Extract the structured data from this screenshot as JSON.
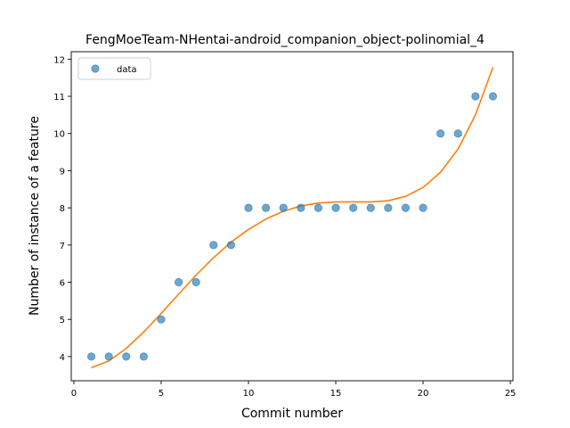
{
  "chart_data": {
    "type": "scatter",
    "title": "FengMoeTeam-NHentai-android_companion_object-polinomial_4",
    "xlabel": "Commit number",
    "ylabel": "Number of instance of a feature",
    "xlim": [
      -0.15,
      25.15
    ],
    "ylim": [
      3.35,
      12.2
    ],
    "x_ticks": [
      0,
      5,
      10,
      15,
      20,
      25
    ],
    "y_ticks": [
      4,
      5,
      6,
      7,
      8,
      9,
      10,
      11,
      12
    ],
    "grid": false,
    "legend": {
      "position": "top-left",
      "entries": [
        "data"
      ]
    },
    "colors": {
      "data": "#1f77b4",
      "fit": "#ff7f0e"
    },
    "series": [
      {
        "name": "data",
        "type": "scatter",
        "x": [
          1,
          2,
          3,
          4,
          5,
          6,
          7,
          8,
          9,
          10,
          11,
          12,
          13,
          14,
          15,
          16,
          17,
          18,
          19,
          20,
          21,
          22,
          23,
          24
        ],
        "y": [
          4,
          4,
          4,
          4,
          5,
          6,
          6,
          7,
          7,
          8,
          8,
          8,
          8,
          8,
          8,
          8,
          8,
          8,
          8,
          8,
          10,
          10,
          11,
          11
        ]
      },
      {
        "type": "line",
        "x": [
          1,
          2,
          3,
          4,
          5,
          6,
          7,
          8,
          9,
          10,
          11,
          12,
          13,
          14,
          15,
          16,
          17,
          18,
          19,
          20,
          21,
          22,
          23,
          24
        ],
        "y": [
          3.7,
          3.88,
          4.22,
          4.66,
          5.16,
          5.68,
          6.19,
          6.66,
          7.08,
          7.42,
          7.7,
          7.91,
          8.05,
          8.13,
          8.16,
          8.16,
          8.16,
          8.19,
          8.31,
          8.55,
          8.96,
          9.58,
          10.5,
          11.78
        ]
      }
    ]
  }
}
